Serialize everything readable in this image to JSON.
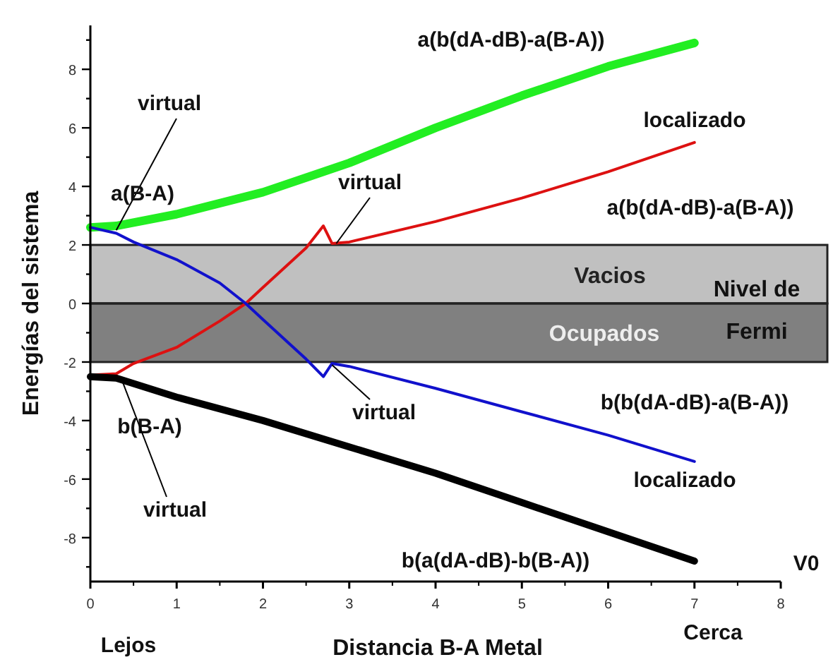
{
  "chart_data": {
    "type": "line",
    "xlabel": "Distancia B-A Metal",
    "ylabel": "Energías del sistema",
    "xlim": [
      0,
      8
    ],
    "xticks": [
      0,
      1,
      2,
      3,
      4,
      5,
      6,
      7,
      8
    ],
    "ylim": [
      -9.5,
      9.5
    ],
    "yticks": [
      {
        "value": -9,
        "label": null
      },
      -8,
      {
        "value": -7,
        "label": null
      },
      -6,
      {
        "value": -5,
        "label": null
      },
      -4,
      {
        "value": -3,
        "label": null
      },
      -2,
      {
        "value": -1,
        "label": null
      },
      0,
      {
        "value": 1,
        "label": null
      },
      2,
      {
        "value": 3,
        "label": null
      },
      4,
      {
        "value": 5,
        "label": null
      },
      6,
      {
        "value": 7,
        "label": null
      },
      8,
      {
        "value": 9,
        "label": null
      }
    ],
    "grid": false,
    "line_style": "solid",
    "bands": [
      {
        "axis": "y",
        "from": 0,
        "to": 2,
        "label": "Vacios",
        "color": "#c0c0c0"
      },
      {
        "axis": "y",
        "from": -2,
        "to": 0,
        "label": "Ocupados",
        "color": "#808080"
      }
    ],
    "ref_lines": [
      {
        "axis": "y",
        "value": 0,
        "label": "Nivel de Fermi"
      }
    ],
    "series": [
      {
        "color": "#22ee22",
        "x": [
          0,
          0.3,
          1,
          2,
          3,
          4,
          5,
          6,
          7
        ],
        "values": [
          2.6,
          2.65,
          3.05,
          3.8,
          4.8,
          6.0,
          7.1,
          8.1,
          8.9
        ]
      },
      {
        "color": "#dd1111",
        "x": [
          0,
          0.3,
          0.5,
          1,
          1.5,
          1.8,
          2,
          2.5,
          2.7,
          2.8,
          3,
          4,
          5,
          6,
          7
        ],
        "values": [
          -2.45,
          -2.4,
          -2.05,
          -1.5,
          -0.6,
          0,
          0.55,
          1.9,
          2.65,
          2.05,
          2.1,
          2.8,
          3.6,
          4.5,
          5.5
        ]
      },
      {
        "color": "#1111cc",
        "x": [
          0,
          0.3,
          0.5,
          1,
          1.5,
          1.8,
          2,
          2.5,
          2.7,
          2.8,
          3,
          4,
          5,
          6,
          7
        ],
        "values": [
          2.6,
          2.4,
          2.1,
          1.5,
          0.7,
          0,
          -0.55,
          -1.9,
          -2.5,
          -2.05,
          -2.15,
          -2.9,
          -3.7,
          -4.5,
          -5.4
        ]
      },
      {
        "color": "#000000",
        "x": [
          0,
          0.3,
          1,
          2,
          3,
          4,
          5,
          6,
          7
        ],
        "values": [
          -2.5,
          -2.55,
          -3.2,
          -4.0,
          -4.9,
          -5.8,
          -6.8,
          -7.8,
          -8.8
        ]
      }
    ],
    "annotations": [
      "a(b(dA-dB)-a(B-A))",
      {
        "text": "virtual",
        "x": 0.3,
        "y": 2.5
      },
      "a(B-A)",
      "localizado",
      {
        "text": "virtual",
        "x": 2.85,
        "y": 2.05
      },
      "a(b(dA-dB)-a(B-A))",
      "b(b(dA-dB)-a(B-A))",
      "b(B-A)",
      {
        "text": "virtual",
        "x": 2.8,
        "y": -2.1
      },
      "localizado",
      {
        "text": "virtual",
        "x": 0.35,
        "y": -2.5
      },
      "b(a(dA-dB)-b(B-A))",
      "V0",
      "Lejos",
      "Cerca"
    ]
  }
}
